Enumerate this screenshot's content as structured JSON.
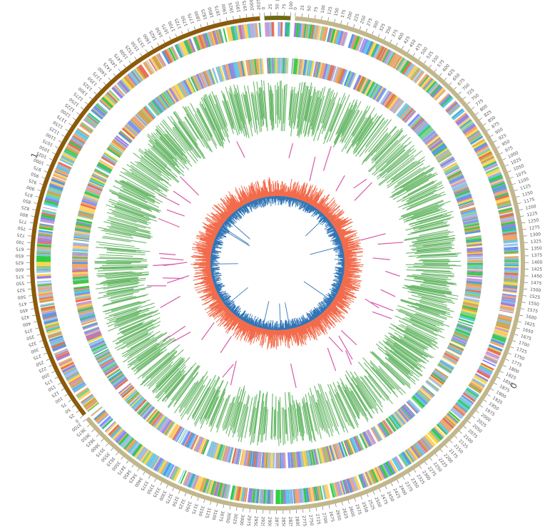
{
  "plot": {
    "chromosomes": [
      {
        "id": "0",
        "label": "0",
        "size": 3700,
        "color": "#c2b78b",
        "tick_step": 25,
        "label_step": 25
      },
      {
        "id": "2",
        "label": "2",
        "size": 100,
        "color": "#6f6a12",
        "tick_step": 25,
        "label_step": 25
      },
      {
        "id": "1",
        "label": "1",
        "size": 2025,
        "color": "#8b5a0b",
        "tick_step": 25,
        "label_step": 25
      }
    ],
    "band_palette": [
      "#4f9be0",
      "#a3c0e8",
      "#f4a261",
      "#e76f51",
      "#9b7fe0",
      "#7bd389",
      "#f7d84b",
      "#89c2d9",
      "#c29bd8",
      "#3fbf6a",
      "#ffd166",
      "#5ec8e5",
      "#d0a34f",
      "#2ecc40",
      "#7f8cff",
      "#e8a87c"
    ],
    "gene_track_color": "#6ab96a",
    "link_color": "#d65aa9",
    "gc_pos_color": "#f26b4b",
    "gc_neg_color": "#2f74b5"
  }
}
